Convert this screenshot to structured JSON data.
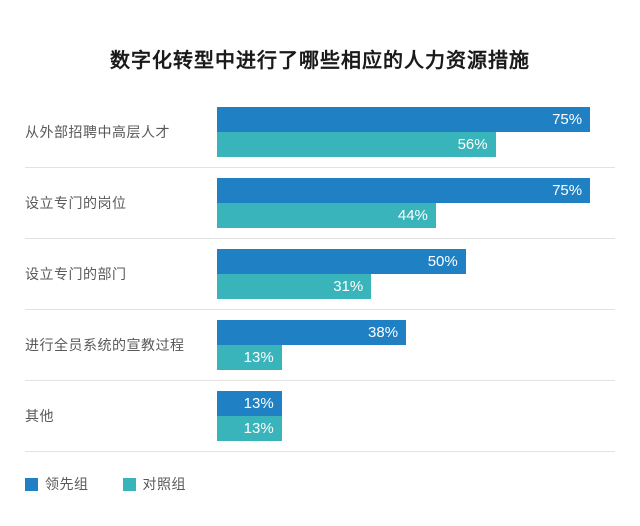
{
  "title": "数字化转型中进行了哪些相应的人力资源措施",
  "colors": {
    "leader": "#1f80c4",
    "control": "#38b4ba",
    "separator": "#e2e2e2",
    "label_text": "#595959",
    "value_text": "#ffffff",
    "title_text": "#1a1a1a"
  },
  "legend": [
    {
      "label": "领先组",
      "color": "#1f80c4"
    },
    {
      "label": "对照组",
      "color": "#38b4ba"
    }
  ],
  "chart_data": {
    "type": "bar",
    "orientation": "horizontal",
    "title": "数字化转型中进行了哪些相应的人力资源措施",
    "categories": [
      "从外部招聘中高层人才",
      "设立专门的岗位",
      "设立专门的部门",
      "进行全员系统的宣教过程",
      "其他"
    ],
    "series": [
      {
        "name": "领先组",
        "color": "#1f80c4",
        "values": [
          75,
          75,
          50,
          38,
          13
        ]
      },
      {
        "name": "对照组",
        "color": "#38b4ba",
        "values": [
          56,
          44,
          31,
          13,
          13
        ]
      }
    ],
    "value_suffix": "%",
    "xlim": [
      0,
      80
    ],
    "grid": false,
    "legend_position": "bottom-left",
    "rows": [
      {
        "label": "从外部招聘中高层人才",
        "leader": 75,
        "control": 56,
        "leader_text": "75%",
        "control_text": "56%"
      },
      {
        "label": "设立专门的岗位",
        "leader": 75,
        "control": 44,
        "leader_text": "75%",
        "control_text": "44%"
      },
      {
        "label": "设立专门的部门",
        "leader": 50,
        "control": 31,
        "leader_text": "50%",
        "control_text": "31%"
      },
      {
        "label": "进行全员系统的宣教过程",
        "leader": 38,
        "control": 13,
        "leader_text": "38%",
        "control_text": "13%"
      },
      {
        "label": "其他",
        "leader": 13,
        "control": 13,
        "leader_text": "13%",
        "control_text": "13%"
      }
    ]
  }
}
